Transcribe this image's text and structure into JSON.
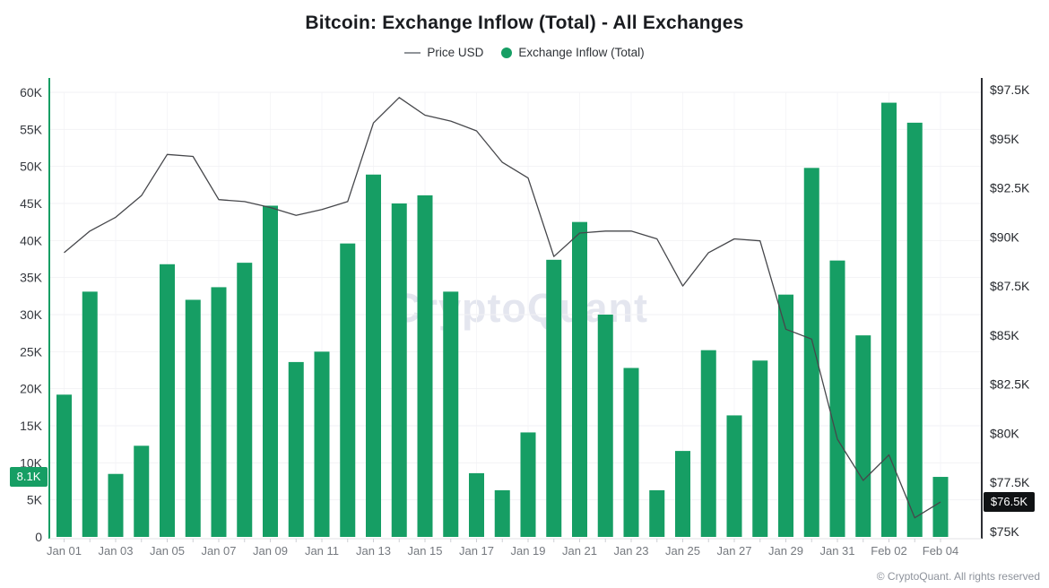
{
  "title": "Bitcoin: Exchange Inflow (Total) - All Exchanges",
  "legend": {
    "price_label": "Price USD",
    "inflow_label": "Exchange Inflow (Total)",
    "price_swatch_color": "#909499",
    "inflow_swatch_color": "#169e64"
  },
  "watermark": "CryptoQuant",
  "footer": "© CryptoQuant. All rights reserved",
  "badges": {
    "inflow": {
      "label": "8.1K",
      "value": 8.1,
      "bg": "#169e64",
      "text_color": "#ffffff"
    },
    "price": {
      "label": "$76.5K",
      "value": 76.5,
      "bg": "#101214",
      "text_color": "#ffffff"
    }
  },
  "chart_data": {
    "type": "bar+line",
    "title": "Bitcoin: Exchange Inflow (Total) - All Exchanges",
    "grid": true,
    "legend_position": "top",
    "categories": [
      "Jan 01",
      "Jan 02",
      "Jan 03",
      "Jan 04",
      "Jan 05",
      "Jan 06",
      "Jan 07",
      "Jan 08",
      "Jan 09",
      "Jan 10",
      "Jan 11",
      "Jan 12",
      "Jan 13",
      "Jan 14",
      "Jan 15",
      "Jan 16",
      "Jan 17",
      "Jan 18",
      "Jan 19",
      "Jan 20",
      "Jan 21",
      "Jan 22",
      "Jan 23",
      "Jan 24",
      "Jan 25",
      "Jan 26",
      "Jan 27",
      "Jan 28",
      "Jan 29",
      "Jan 30",
      "Jan 31",
      "Feb 01",
      "Feb 02",
      "Feb 03",
      "Feb 04"
    ],
    "x_tick_labels": [
      "Jan 01",
      "Jan 03",
      "Jan 05",
      "Jan 07",
      "Jan 09",
      "Jan 11",
      "Jan 13",
      "Jan 15",
      "Jan 17",
      "Jan 19",
      "Jan 21",
      "Jan 23",
      "Jan 25",
      "Jan 27",
      "Jan 29",
      "Jan 31",
      "Feb 02",
      "Feb 04"
    ],
    "series": [
      {
        "name": "Exchange Inflow (Total)",
        "type": "bar",
        "axis": "left",
        "unit": "K BTC",
        "color": "#169e64",
        "values": [
          19.2,
          33.1,
          8.5,
          12.3,
          36.8,
          32.0,
          33.7,
          37.0,
          44.7,
          23.6,
          25.0,
          39.6,
          48.9,
          45.0,
          46.1,
          33.1,
          8.6,
          6.3,
          14.1,
          37.4,
          42.5,
          30.0,
          22.8,
          6.3,
          11.6,
          25.2,
          16.4,
          23.8,
          32.7,
          49.8,
          37.3,
          27.2,
          58.6,
          55.9,
          8.1
        ]
      },
      {
        "name": "Price USD",
        "type": "line",
        "axis": "right",
        "unit": "K USD",
        "color": "#46474b",
        "values": [
          89.2,
          90.3,
          91.0,
          92.1,
          94.2,
          94.1,
          91.9,
          91.8,
          91.5,
          91.1,
          91.4,
          91.8,
          95.8,
          97.1,
          96.2,
          95.9,
          95.4,
          93.8,
          93.0,
          89.0,
          90.2,
          90.3,
          90.3,
          89.9,
          87.5,
          89.2,
          89.9,
          89.8,
          85.3,
          84.8,
          79.7,
          77.6,
          78.9,
          75.7,
          76.5
        ]
      }
    ],
    "left_axis": {
      "title": "",
      "range": [
        0,
        60
      ],
      "tick_values": [
        0,
        5,
        10,
        15,
        20,
        25,
        30,
        35,
        40,
        45,
        50,
        55,
        60
      ],
      "tick_labels": [
        "0",
        "5K",
        "10K",
        "15K",
        "20K",
        "25K",
        "30K",
        "35K",
        "40K",
        "45K",
        "50K",
        "55K",
        "60K"
      ],
      "axis_color": "#169e64",
      "label_color": "#36393f"
    },
    "right_axis": {
      "title": "",
      "range": [
        75,
        97.5
      ],
      "tick_values": [
        75,
        77.5,
        80,
        82.5,
        85,
        87.5,
        90,
        92.5,
        95,
        97.5
      ],
      "tick_labels": [
        "$75K",
        "$77.5K",
        "$80K",
        "$82.5K",
        "$85K",
        "$87.5K",
        "$90K",
        "$92.5K",
        "$95K",
        "$97.5K"
      ],
      "axis_color": "#2c2e33",
      "label_color": "#26292e"
    }
  }
}
